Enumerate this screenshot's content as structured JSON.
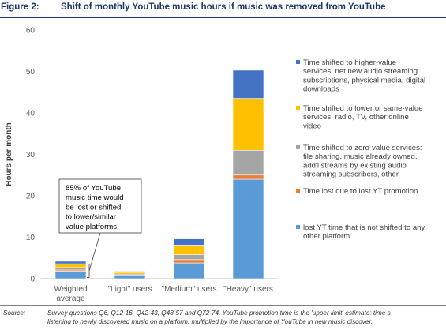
{
  "figure": {
    "label": "Figure 2:",
    "title": "Shift of monthly YouTube music hours if music was removed from YouTube"
  },
  "source": {
    "label": "Source:",
    "lines": [
      "Survey questions Q6, Q12-16, Q42-43, Q48-57 and Q72-74.  YouTube promotion time is the 'upper limit' estimate: time s",
      "listening to newly discovered music on a platform, multiplied by the importance of YouTube in new music discover."
    ]
  },
  "annotation": {
    "lines": [
      "85% of YouTube",
      "music time would",
      "be lost or shifted",
      "to lower/similar",
      "value platforms"
    ]
  },
  "chart_data": {
    "type": "bar",
    "stacked": true,
    "categories": [
      "Weighted average",
      "\"Light\" users",
      "\"Medium\" users",
      "\"Heavy\" users"
    ],
    "category_lines": [
      [
        "Weighted",
        "average"
      ],
      [
        "\"Light\" users"
      ],
      [
        "\"Medium\" users"
      ],
      [
        "\"Heavy\" users"
      ]
    ],
    "ylabel": "Hours per month",
    "ylim": [
      0,
      60
    ],
    "yticks": [
      0,
      10,
      20,
      30,
      40,
      50,
      60
    ],
    "grid": false,
    "legend_position": "right",
    "series": [
      {
        "name": "lost YT time that is not shifted to any other platform",
        "legend_lines": [
          "lost YT time that is not shifted to any",
          "other platform"
        ],
        "color": "#5b9bd5",
        "values": [
          1.8,
          0.7,
          3.8,
          24.0
        ]
      },
      {
        "name": "Time lost due to lost YT promotion",
        "legend_lines": [
          "Time lost due to lost YT promotion"
        ],
        "color": "#ed7d31",
        "values": [
          0.3,
          0.1,
          0.8,
          1.0
        ]
      },
      {
        "name": "Time shifted to zero-value services: file sharing, music already owned, add'l streams by existing audio streaming subscribers, other",
        "legend_lines": [
          "Time shifted to zero-value services:",
          "file sharing, music already owned,",
          "add'l streams by existing audio",
          "streaming subscribers, other"
        ],
        "color": "#a5a5a5",
        "values": [
          0.6,
          0.3,
          1.2,
          6.0
        ]
      },
      {
        "name": "Time shifted to lower or same-value services: radio, TV, other online video",
        "legend_lines": [
          "Time shifted to lower or same-value",
          "services: radio, TV, other online",
          "video"
        ],
        "color": "#ffc000",
        "values": [
          0.9,
          0.4,
          2.3,
          12.5
        ]
      },
      {
        "name": "Time shifted to higher-value services: net new audio streaming subscriptions, physical media, digital downloads",
        "legend_lines": [
          "Time shifted to higher-value",
          "services: net new audio streaming",
          "subscriptions, physical media, digital",
          "downloads"
        ],
        "color": "#4472c4",
        "values": [
          0.6,
          0.3,
          1.5,
          6.8
        ]
      }
    ]
  }
}
